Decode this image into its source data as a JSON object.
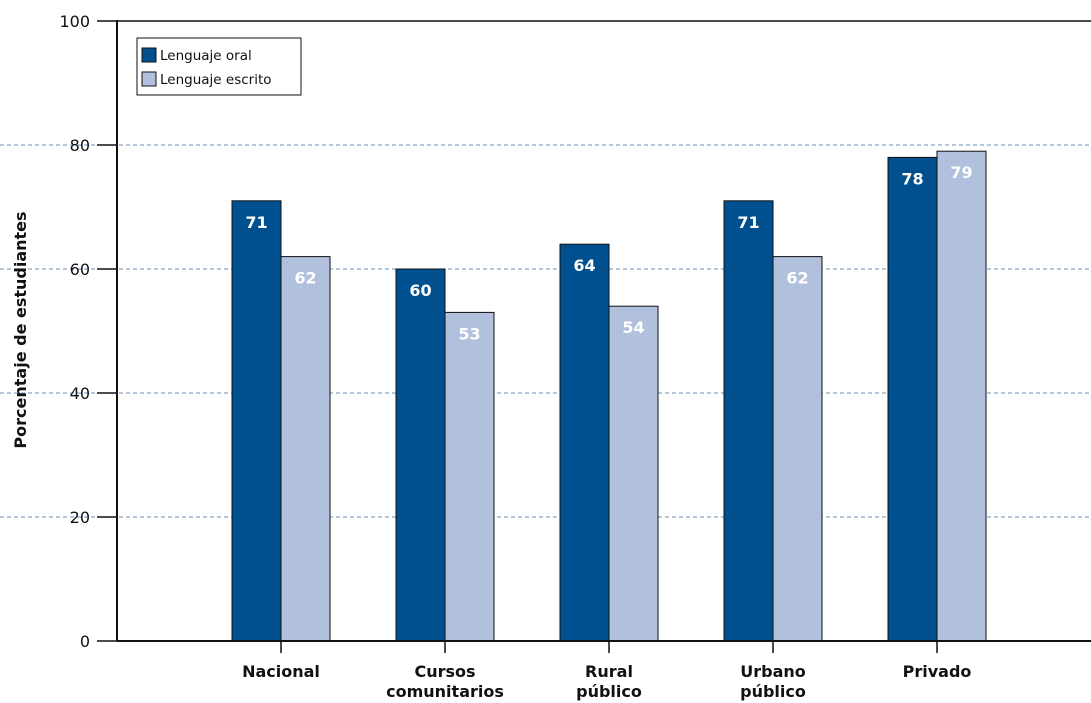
{
  "chart_data": {
    "type": "bar",
    "title": "",
    "xlabel": "",
    "ylabel": "Porcentaje de estudiantes",
    "ylim": [
      0,
      100
    ],
    "yticks": [
      0,
      20,
      40,
      60,
      80,
      100
    ],
    "grid": true,
    "legend_position": "top-left",
    "categories": [
      [
        "Nacional"
      ],
      [
        "Cursos",
        "comunitarios"
      ],
      [
        "Rural",
        "público"
      ],
      [
        "Urbano",
        "público"
      ],
      [
        "Privado"
      ]
    ],
    "series": [
      {
        "name": "Lenguaje oral",
        "color": "#00508f",
        "values": [
          71,
          60,
          64,
          71,
          78
        ]
      },
      {
        "name": "Lenguaje escrito",
        "color": "#b1c0dd",
        "values": [
          62,
          53,
          54,
          62,
          79
        ]
      }
    ]
  }
}
